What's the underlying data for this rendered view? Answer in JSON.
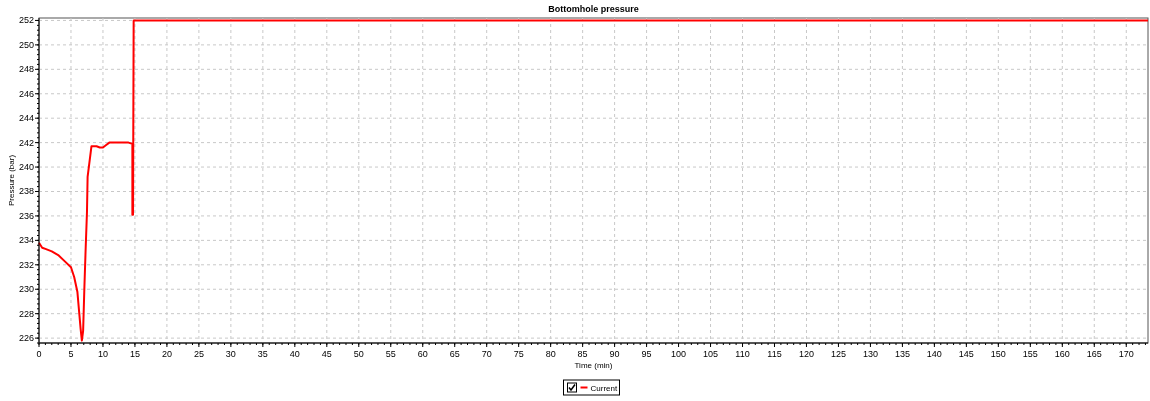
{
  "chart_data": {
    "type": "line",
    "title": "Bottomhole pressure",
    "xlabel": "Time (min)",
    "ylabel": "Pressure (bar)",
    "x": [
      0,
      0.5,
      1,
      2,
      3,
      4,
      5,
      5.5,
      6,
      6.3,
      6.5,
      6.7,
      6.9,
      7.1,
      7.3,
      7.5,
      7.6,
      8.2,
      9,
      9.5,
      10,
      10.5,
      11,
      14,
      14.6,
      14.6,
      14.7,
      14.8,
      173.4
    ],
    "series": [
      {
        "name": "Current",
        "color": "#ff0000",
        "values": [
          233.8,
          233.4,
          233.3,
          233.1,
          232.8,
          232.3,
          231.8,
          231,
          229.8,
          228,
          226.8,
          225.8,
          226.6,
          230.2,
          233.4,
          236.3,
          239.2,
          241.7,
          241.7,
          241.6,
          241.6,
          241.8,
          242,
          242,
          241.9,
          236.1,
          236.1,
          252,
          252
        ]
      }
    ],
    "xlim": [
      0,
      173.4
    ],
    "ylim": [
      225.6,
      252.2
    ],
    "xticks": [
      0,
      5,
      10,
      15,
      20,
      25,
      30,
      35,
      40,
      45,
      50,
      55,
      60,
      65,
      70,
      75,
      80,
      85,
      90,
      95,
      100,
      105,
      110,
      115,
      120,
      125,
      130,
      135,
      140,
      145,
      150,
      155,
      160,
      165,
      170
    ],
    "yticks": [
      226,
      228,
      230,
      232,
      234,
      236,
      238,
      240,
      242,
      244,
      246,
      248,
      250,
      252
    ],
    "grid": true,
    "legend": "bottom",
    "line_style": "solid"
  }
}
